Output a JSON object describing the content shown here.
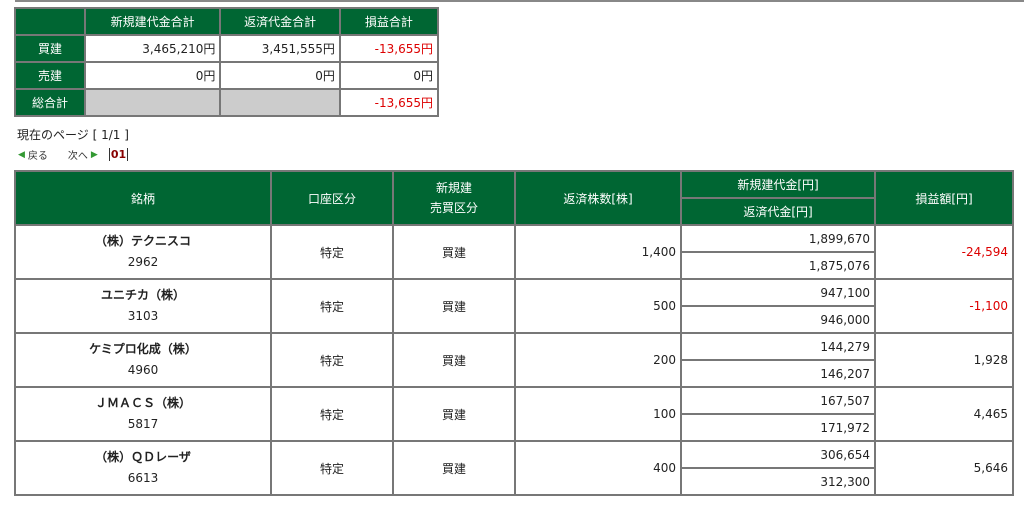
{
  "summary": {
    "headers": [
      "新規建代金合計",
      "返済代金合計",
      "損益合計"
    ],
    "rows": [
      {
        "label": "買建",
        "new": "3,465,210円",
        "close": "3,451,555円",
        "pl": "-13,655円",
        "neg": true
      },
      {
        "label": "売建",
        "new": "0円",
        "close": "0円",
        "pl": "0円",
        "neg": false
      },
      {
        "label": "総合計",
        "new": "",
        "close": "",
        "pl": "-13,655円",
        "neg": true
      }
    ]
  },
  "pagination": {
    "current": "現在のページ [ 1/1 ]",
    "prev": "戻る",
    "next": "次へ",
    "page": "01"
  },
  "table": {
    "headers": {
      "name": "銘柄",
      "account": "口座区分",
      "side1": "新規建",
      "side2": "売買区分",
      "qty": "返済株数[株]",
      "new_amt": "新規建代金[円]",
      "close_amt": "返済代金[円]",
      "pl": "損益額[円]"
    },
    "rows": [
      {
        "name": "（株）テクニスコ",
        "code": "2962",
        "account": "特定",
        "side": "買建",
        "qty": "1,400",
        "new_amt": "1,899,670",
        "close_amt": "1,875,076",
        "pl": "-24,594",
        "neg": true
      },
      {
        "name": "ユニチカ（株）",
        "code": "3103",
        "account": "特定",
        "side": "買建",
        "qty": "500",
        "new_amt": "947,100",
        "close_amt": "946,000",
        "pl": "-1,100",
        "neg": true
      },
      {
        "name": "ケミプロ化成（株）",
        "code": "4960",
        "account": "特定",
        "side": "買建",
        "qty": "200",
        "new_amt": "144,279",
        "close_amt": "146,207",
        "pl": "1,928",
        "neg": false
      },
      {
        "name": "ＪＭＡＣＳ（株）",
        "code": "5817",
        "account": "特定",
        "side": "買建",
        "qty": "100",
        "new_amt": "167,507",
        "close_amt": "171,972",
        "pl": "4,465",
        "neg": false
      },
      {
        "name": "（株）ＱＤレーザ",
        "code": "6613",
        "account": "特定",
        "side": "買建",
        "qty": "400",
        "new_amt": "306,654",
        "close_amt": "312,300",
        "pl": "5,646",
        "neg": false
      }
    ]
  }
}
